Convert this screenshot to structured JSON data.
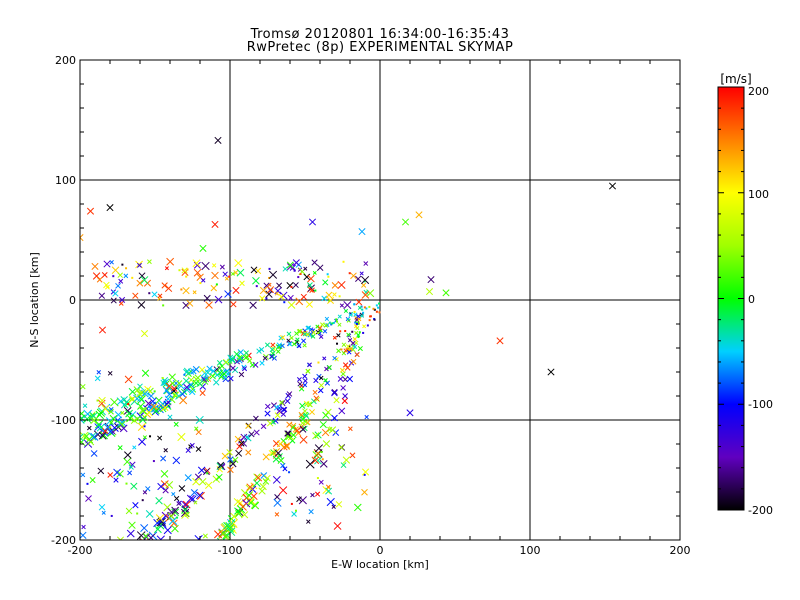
{
  "chart_data": {
    "type": "scatter",
    "title": "Tromsø 20120801 16:34:00-16:35:43",
    "subtitle": "RwPretec (8p) EXPERIMENTAL SKYMAP",
    "xlabel": "E-W location [km]",
    "ylabel": "N-S location [km]",
    "xlim": [
      -200,
      200
    ],
    "ylim": [
      -200,
      200
    ],
    "xticks": [
      "-200",
      "-100",
      "0",
      "100",
      "200"
    ],
    "yticks": [
      "-200",
      "-100",
      "0",
      "100",
      "200"
    ],
    "grid": true,
    "colorbar": {
      "label": "[m/s]",
      "range": [
        -200,
        200
      ],
      "ticks": [
        "-200",
        "-100",
        "0",
        "100",
        "200"
      ]
    },
    "points": [
      {
        "x": -108,
        "y": 133,
        "v": -190
      },
      {
        "x": -180,
        "y": 77,
        "v": -200
      },
      {
        "x": -193,
        "y": 74,
        "v": 180
      },
      {
        "x": -110,
        "y": 63,
        "v": 190
      },
      {
        "x": -45,
        "y": 65,
        "v": -120
      },
      {
        "x": -12,
        "y": 57,
        "v": -60
      },
      {
        "x": 17,
        "y": 65,
        "v": 20
      },
      {
        "x": 26,
        "y": 71,
        "v": 130
      },
      {
        "x": 155,
        "y": 95,
        "v": -200
      },
      {
        "x": 34,
        "y": 17,
        "v": -170
      },
      {
        "x": 33,
        "y": 7,
        "v": 60
      },
      {
        "x": 44,
        "y": 6,
        "v": 20
      },
      {
        "x": 80,
        "y": -34,
        "v": 180
      },
      {
        "x": 114,
        "y": -60,
        "v": -200
      },
      {
        "x": 20,
        "y": -94,
        "v": -120
      },
      {
        "x": -185,
        "y": -25,
        "v": 190
      },
      {
        "x": -157,
        "y": -28,
        "v": 80
      },
      {
        "x": -173,
        "y": -200,
        "v": 60
      },
      {
        "x": -96,
        "y": 8,
        "v": 190
      },
      {
        "x": -60,
        "y": 12,
        "v": -200
      },
      {
        "x": -118,
        "y": 43,
        "v": 10
      },
      {
        "x": -130,
        "y": 23,
        "v": 170
      },
      {
        "x": -182,
        "y": 30,
        "v": -140
      },
      {
        "x": -190,
        "y": 28,
        "v": 150
      },
      {
        "x": -200,
        "y": 52,
        "v": 140
      },
      {
        "x": -155,
        "y": 14,
        "v": 160
      },
      {
        "x": -178,
        "y": -110,
        "v": 30
      },
      {
        "x": -192,
        "y": -96,
        "v": 60
      }
    ],
    "bands": [
      {
        "from": [
          -3,
          -3
        ],
        "to": [
          -200,
          -118
        ],
        "n": 170,
        "spread": 5,
        "vsets": [
          [
            -200,
            -90,
            0.22
          ],
          [
            -90,
            -30,
            0.33
          ],
          [
            -30,
            40,
            0.33
          ],
          [
            40,
            200,
            0.12
          ]
        ]
      },
      {
        "from": [
          -3,
          -5
        ],
        "to": [
          -200,
          -98
        ],
        "n": 110,
        "spread": 4,
        "vsets": [
          [
            -70,
            -20,
            0.55
          ],
          [
            -20,
            60,
            0.3
          ],
          [
            60,
            200,
            0.15
          ]
        ]
      },
      {
        "from": [
          -3,
          -6
        ],
        "to": [
          -155,
          -200
        ],
        "n": 130,
        "spread": 7,
        "vsets": [
          [
            -200,
            -90,
            0.55
          ],
          [
            -90,
            40,
            0.2
          ],
          [
            40,
            200,
            0.25
          ]
        ]
      },
      {
        "from": [
          -3,
          -3
        ],
        "to": [
          -105,
          -200
        ],
        "n": 130,
        "spread": 5,
        "vsets": [
          [
            -30,
            60,
            0.4
          ],
          [
            60,
            200,
            0.5
          ],
          [
            -200,
            -30,
            0.1
          ]
        ]
      },
      {
        "from": [
          -4,
          -4
        ],
        "to": [
          -45,
          -140
        ],
        "n": 45,
        "spread": 6,
        "vsets": [
          [
            -200,
            -90,
            0.5
          ],
          [
            -90,
            60,
            0.3
          ],
          [
            60,
            200,
            0.2
          ]
        ]
      }
    ],
    "clouds": [
      {
        "xr": [
          -190,
          -5
        ],
        "yr": [
          -5,
          32
        ],
        "n": 150,
        "vsets": [
          [
            90,
            200,
            0.45
          ],
          [
            -200,
            -120,
            0.3
          ],
          [
            -120,
            90,
            0.25
          ]
        ]
      },
      {
        "xr": [
          -200,
          -115
        ],
        "yr": [
          -200,
          -105
        ],
        "n": 70,
        "vsets": [
          [
            -200,
            -80,
            0.55
          ],
          [
            -80,
            60,
            0.35
          ],
          [
            60,
            200,
            0.1
          ]
        ]
      },
      {
        "xr": [
          -200,
          -110
        ],
        "yr": [
          -115,
          -60
        ],
        "n": 40,
        "vsets": [
          [
            -60,
            60,
            0.6
          ],
          [
            60,
            200,
            0.25
          ],
          [
            -200,
            -60,
            0.15
          ]
        ]
      },
      {
        "xr": [
          -70,
          -8
        ],
        "yr": [
          -190,
          -95
        ],
        "n": 45,
        "vsets": [
          [
            -200,
            -80,
            0.4
          ],
          [
            -80,
            100,
            0.45
          ],
          [
            100,
            200,
            0.15
          ]
        ]
      }
    ]
  }
}
